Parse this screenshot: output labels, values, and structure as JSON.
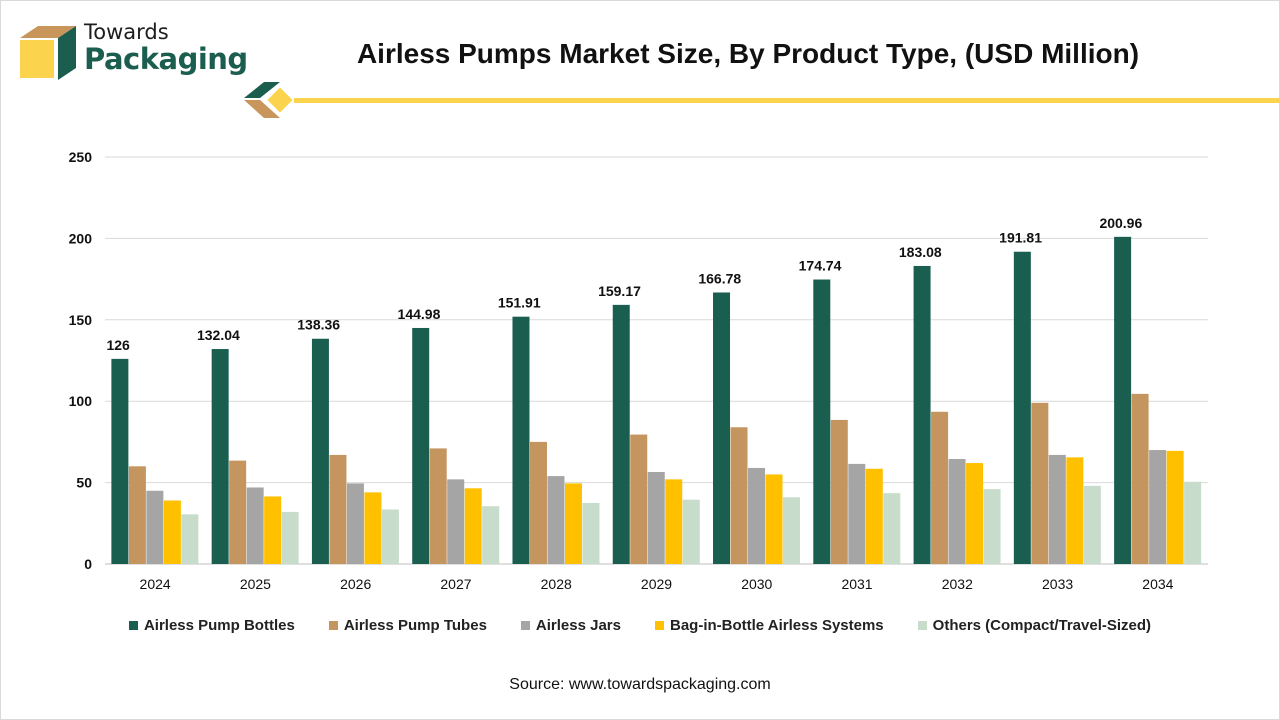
{
  "header": {
    "logo_line1": "Towards",
    "logo_line2": "Packaging",
    "title": "Airless Pumps Market Size, By Product Type, (USD Million)"
  },
  "footer": {
    "source": "Source: www.towardspackaging.com"
  },
  "colors": {
    "brand_green": "#1b5e4f",
    "brand_yellow": "#fbd34d",
    "brand_tan": "#c8965a",
    "grid": "#d9d9d9"
  },
  "chart_data": {
    "type": "bar",
    "title": "Airless Pumps Market Size, By Product Type, (USD Million)",
    "xlabel": "",
    "ylabel": "",
    "ylim": [
      0,
      250
    ],
    "yticks": [
      0,
      50,
      100,
      150,
      200,
      250
    ],
    "grid": true,
    "legend_position": "bottom",
    "categories": [
      "2024",
      "2025",
      "2026",
      "2027",
      "2028",
      "2029",
      "2030",
      "2031",
      "2032",
      "2033",
      "2034"
    ],
    "series": [
      {
        "name": "Airless Pump Bottles",
        "color": "#1a5e50",
        "values": [
          126,
          132.04,
          138.36,
          144.98,
          151.91,
          159.17,
          166.78,
          174.74,
          183.08,
          191.81,
          200.96
        ],
        "data_labels": [
          "126",
          "132.04",
          "138.36",
          "144.98",
          "151.91",
          "159.17",
          "166.78",
          "174.74",
          "183.08",
          "191.81",
          "200.96"
        ]
      },
      {
        "name": "Airless Pump Tubes",
        "color": "#c4955f",
        "values": [
          60,
          63.5,
          67,
          71,
          75,
          79.5,
          84,
          88.5,
          93.5,
          99,
          104.5
        ]
      },
      {
        "name": "Airless Jars",
        "color": "#a5a5a5",
        "values": [
          45,
          47,
          49.5,
          52,
          54,
          56.5,
          59,
          61.5,
          64.5,
          67,
          70
        ]
      },
      {
        "name": "Bag-in-Bottle Airless Systems",
        "color": "#ffc000",
        "values": [
          39,
          41.5,
          44,
          46.5,
          49.5,
          52,
          55,
          58.5,
          62,
          65.5,
          69.5
        ]
      },
      {
        "name": "Others (Compact/Travel-Sized)",
        "color": "#c8dccb",
        "values": [
          30.5,
          32,
          33.5,
          35.5,
          37.5,
          39.5,
          41,
          43.5,
          46,
          48,
          50.5
        ]
      }
    ]
  }
}
